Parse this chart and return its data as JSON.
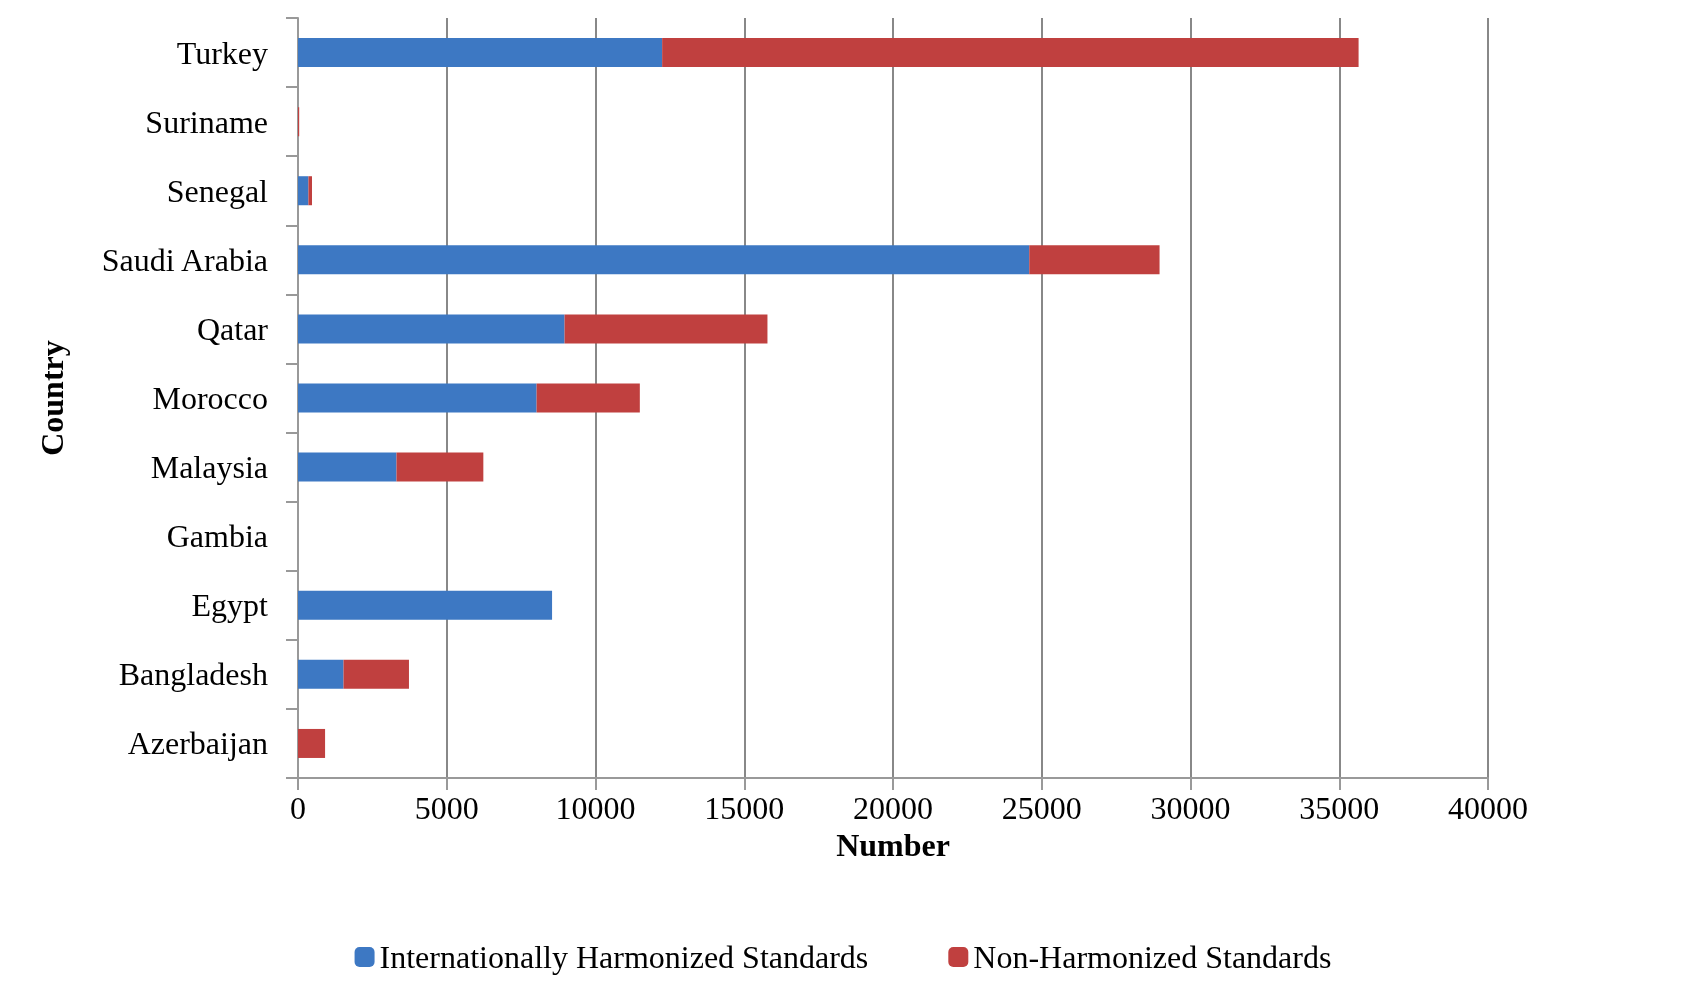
{
  "chart_data": {
    "type": "bar",
    "orientation": "horizontal",
    "stacked": true,
    "xlabel": "Number",
    "ylabel": "Country",
    "categories": [
      "Turkey",
      "Suriname",
      "Senegal",
      "Saudi Arabia",
      "Qatar",
      "Morocco",
      "Malaysia",
      "Gambia",
      "Egypt",
      "Bangladesh",
      "Azerbaijan"
    ],
    "series": [
      {
        "name": "Internationally Harmonized Standards",
        "color": "#3d78c3",
        "values": [
          12240,
          0,
          350,
          24580,
          8960,
          8020,
          3310,
          0,
          8540,
          1530,
          0
        ]
      },
      {
        "name": "Non-Harmonized Standards",
        "color": "#c0403f",
        "values": [
          23410,
          40,
          120,
          4380,
          6820,
          3470,
          2920,
          0,
          0,
          2200,
          910
        ]
      }
    ],
    "xlim": [
      0,
      40000
    ],
    "xticks": [
      0,
      5000,
      10000,
      15000,
      20000,
      25000,
      30000,
      35000,
      40000
    ],
    "grid": "x",
    "legend": "bottom"
  }
}
